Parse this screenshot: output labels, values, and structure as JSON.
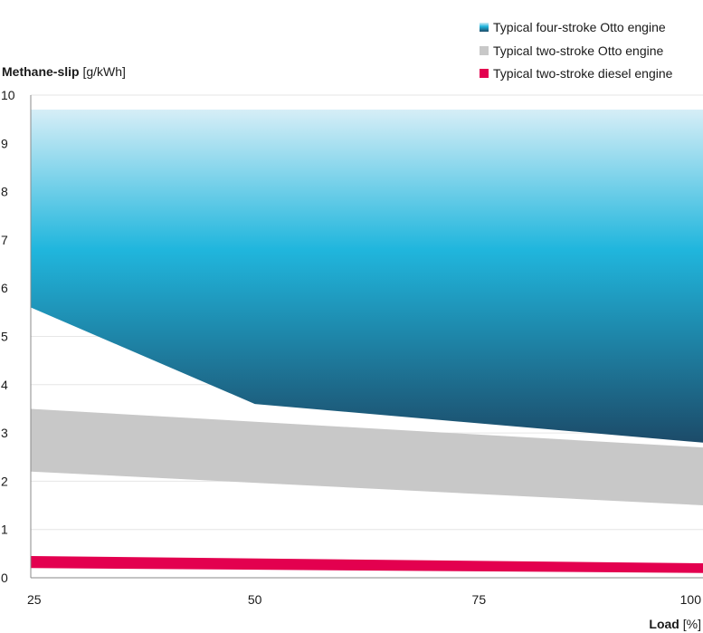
{
  "chart_data": {
    "type": "area",
    "ylabel": {
      "bold": "Methane-slip",
      "unit": " [g/kWh]"
    },
    "xlabel": {
      "bold": "Load",
      "unit": " [%]"
    },
    "x_ticks": [
      "25",
      "50",
      "75",
      "100"
    ],
    "y_ticks": [
      "0",
      "1",
      "2",
      "3",
      "4",
      "5",
      "6",
      "7",
      "8",
      "9",
      "10"
    ],
    "xlim": [
      25,
      100
    ],
    "ylim": [
      0,
      10
    ],
    "grid": "horizontal",
    "legend_position": "top-right",
    "colors": {
      "four_stroke_top": "#d6eef7",
      "four_stroke_mid": "#20b6dd",
      "four_stroke_bottom": "#1c4b69",
      "two_stroke_otto": "#c8c8c8",
      "two_stroke_diesel": "#e3004f",
      "gridline": "#e6e6e6",
      "axis": "#8a8a8a"
    },
    "series": [
      {
        "name": "Typical four-stroke Otto engine",
        "x": [
          25,
          50,
          100
        ],
        "upper": [
          9.7,
          9.7,
          9.7
        ],
        "lower": [
          5.6,
          3.6,
          2.8
        ]
      },
      {
        "name": "Typical two-stroke Otto engine",
        "x": [
          25,
          100
        ],
        "upper": [
          3.5,
          2.7
        ],
        "lower": [
          2.2,
          1.5
        ]
      },
      {
        "name": "Typical two-stroke diesel engine",
        "x": [
          25,
          100
        ],
        "upper": [
          0.45,
          0.3
        ],
        "lower": [
          0.2,
          0.1
        ]
      }
    ]
  }
}
